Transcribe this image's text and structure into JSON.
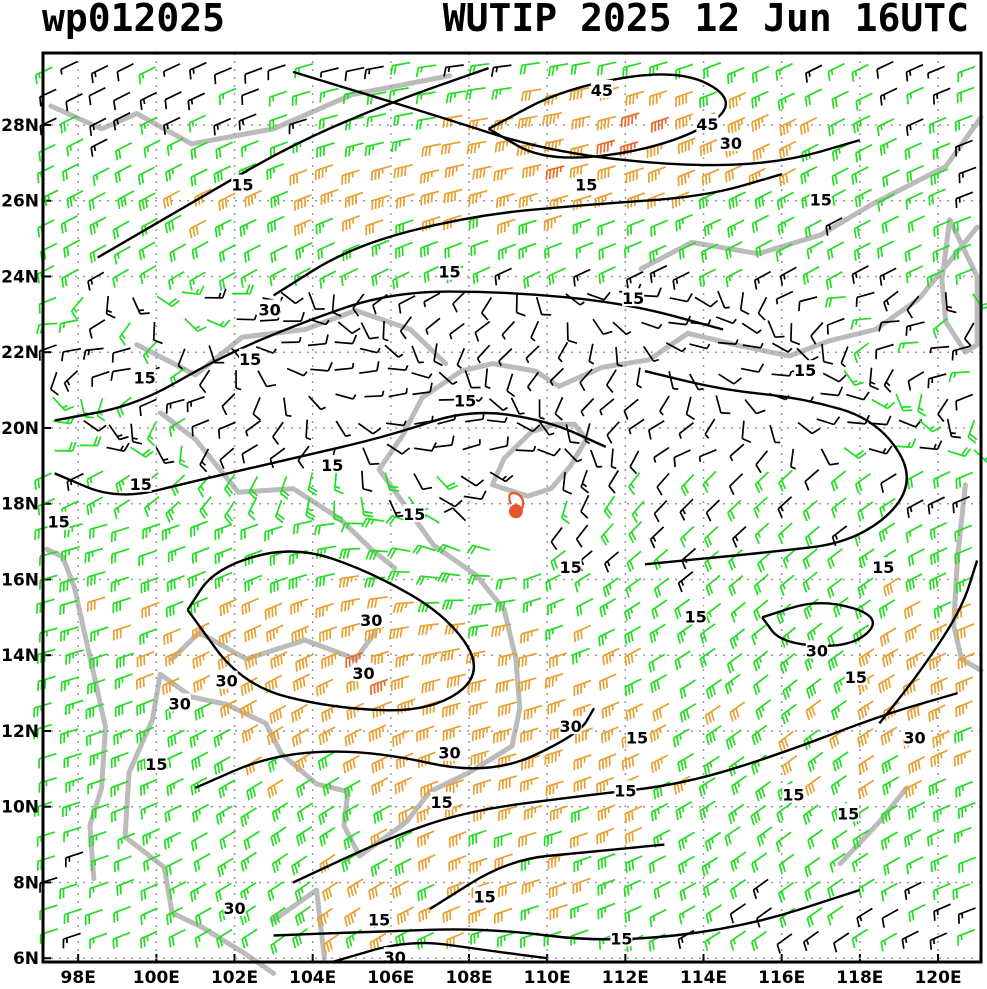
{
  "header": {
    "left": "wp012025",
    "right": "WUTIP 2025 12 Jun 16UTC"
  },
  "storm": {
    "name": "WUTIP",
    "lon": 109.2,
    "lat": 17.8,
    "marker_color": "#e8552a"
  },
  "axes": {
    "lon_labels": [
      "98E",
      "100E",
      "102E",
      "104E",
      "106E",
      "108E",
      "110E",
      "112E",
      "114E",
      "116E",
      "118E",
      "120E"
    ],
    "lon_values": [
      98,
      100,
      102,
      104,
      106,
      108,
      110,
      112,
      114,
      116,
      118,
      120
    ],
    "lat_labels": [
      "6N",
      "8N",
      "10N",
      "12N",
      "14N",
      "16N",
      "18N",
      "20N",
      "22N",
      "24N",
      "26N",
      "28N"
    ],
    "lat_values": [
      6,
      8,
      10,
      12,
      14,
      16,
      18,
      20,
      22,
      24,
      26,
      28
    ],
    "lon_range": [
      97.1,
      121.1
    ],
    "lat_range": [
      5.9,
      29.9
    ],
    "grid": "dotted"
  },
  "contour_labels": [
    {
      "text": "45",
      "lon": 111.4,
      "lat": 28.9
    },
    {
      "text": "45",
      "lon": 114.1,
      "lat": 28.0
    },
    {
      "text": "30",
      "lon": 114.7,
      "lat": 27.5
    },
    {
      "text": "15",
      "lon": 102.2,
      "lat": 26.4
    },
    {
      "text": "15",
      "lon": 111.0,
      "lat": 26.4
    },
    {
      "text": "15",
      "lon": 117.0,
      "lat": 26.0
    },
    {
      "text": "30",
      "lon": 102.9,
      "lat": 23.1
    },
    {
      "text": "15",
      "lon": 107.5,
      "lat": 24.1
    },
    {
      "text": "15",
      "lon": 112.2,
      "lat": 23.4
    },
    {
      "text": "15",
      "lon": 99.7,
      "lat": 21.3
    },
    {
      "text": "15",
      "lon": 102.4,
      "lat": 21.8
    },
    {
      "text": "15",
      "lon": 107.9,
      "lat": 20.7
    },
    {
      "text": "15",
      "lon": 116.6,
      "lat": 21.5
    },
    {
      "text": "15",
      "lon": 104.5,
      "lat": 19.0
    },
    {
      "text": "15",
      "lon": 99.6,
      "lat": 18.5
    },
    {
      "text": "15",
      "lon": 97.5,
      "lat": 17.5
    },
    {
      "text": "15",
      "lon": 106.6,
      "lat": 17.7
    },
    {
      "text": "15",
      "lon": 110.6,
      "lat": 16.3
    },
    {
      "text": "15",
      "lon": 118.6,
      "lat": 16.3
    },
    {
      "text": "15",
      "lon": 113.8,
      "lat": 15.0
    },
    {
      "text": "30",
      "lon": 105.5,
      "lat": 14.9
    },
    {
      "text": "30",
      "lon": 105.3,
      "lat": 13.5
    },
    {
      "text": "30",
      "lon": 116.9,
      "lat": 14.1
    },
    {
      "text": "15",
      "lon": 117.9,
      "lat": 13.4
    },
    {
      "text": "30",
      "lon": 101.8,
      "lat": 13.3
    },
    {
      "text": "30",
      "lon": 100.6,
      "lat": 12.7
    },
    {
      "text": "15",
      "lon": 112.3,
      "lat": 11.8
    },
    {
      "text": "30",
      "lon": 110.6,
      "lat": 12.1
    },
    {
      "text": "30",
      "lon": 119.4,
      "lat": 11.8
    },
    {
      "text": "30",
      "lon": 107.5,
      "lat": 11.4
    },
    {
      "text": "15",
      "lon": 100.0,
      "lat": 11.1
    },
    {
      "text": "15",
      "lon": 107.3,
      "lat": 10.1
    },
    {
      "text": "15",
      "lon": 112.0,
      "lat": 10.4
    },
    {
      "text": "15",
      "lon": 116.3,
      "lat": 10.3
    },
    {
      "text": "15",
      "lon": 117.7,
      "lat": 9.8
    },
    {
      "text": "15",
      "lon": 108.4,
      "lat": 7.6
    },
    {
      "text": "30",
      "lon": 102.0,
      "lat": 7.3
    },
    {
      "text": "15",
      "lon": 105.7,
      "lat": 7.0
    },
    {
      "text": "15",
      "lon": 111.9,
      "lat": 6.5
    },
    {
      "text": "30",
      "lon": 106.1,
      "lat": 6.0
    }
  ],
  "legend_colors": {
    "calm_barb": "#000000",
    "barb_15_30": "#22dd22",
    "barb_30_45": "#e8a030",
    "barb_45_plus": "#e86a28",
    "coastline": "#bbbbbb"
  }
}
